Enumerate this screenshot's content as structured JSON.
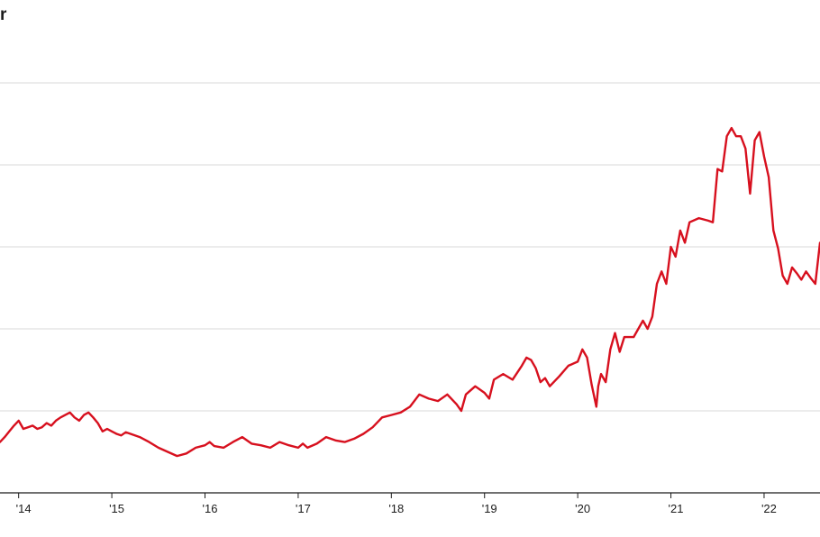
{
  "header": {
    "title_fragment": "r"
  },
  "colors": {
    "line": "#d7101e",
    "grid": "#d9d9d9",
    "axis": "#1a1a1a",
    "background": "#ffffff"
  },
  "chart_data": {
    "type": "line",
    "title": "",
    "xlabel": "",
    "ylabel": "",
    "x_tick_labels": [
      "'14",
      "'15",
      "'16",
      "'17",
      "'18",
      "'19",
      "'20",
      "'21",
      "'22"
    ],
    "x_ticks": [
      2014,
      2015,
      2016,
      2017,
      2018,
      2019,
      2020,
      2021,
      2022
    ],
    "xlim": [
      2013.8,
      2022.6
    ],
    "ylim": [
      0,
      5
    ],
    "y_gridlines": [
      1,
      2,
      3,
      4,
      5
    ],
    "grid": true,
    "legend": "none",
    "series": [
      {
        "x": [
          2013.8,
          2013.85,
          2013.9,
          2013.95,
          2014.0,
          2014.05,
          2014.1,
          2014.15,
          2014.2,
          2014.25,
          2014.3,
          2014.35,
          2014.4,
          2014.45,
          2014.5,
          2014.55,
          2014.6,
          2014.65,
          2014.7,
          2014.75,
          2014.8,
          2014.85,
          2014.9,
          2014.95,
          2015.0,
          2015.05,
          2015.1,
          2015.15,
          2015.2,
          2015.3,
          2015.4,
          2015.5,
          2015.6,
          2015.7,
          2015.8,
          2015.9,
          2016.0,
          2016.05,
          2016.1,
          2016.2,
          2016.3,
          2016.4,
          2016.5,
          2016.6,
          2016.7,
          2016.8,
          2016.9,
          2017.0,
          2017.05,
          2017.1,
          2017.2,
          2017.3,
          2017.4,
          2017.5,
          2017.6,
          2017.7,
          2017.8,
          2017.9,
          2018.0,
          2018.1,
          2018.2,
          2018.3,
          2018.4,
          2018.5,
          2018.6,
          2018.7,
          2018.75,
          2018.8,
          2018.9,
          2019.0,
          2019.05,
          2019.1,
          2019.2,
          2019.3,
          2019.4,
          2019.45,
          2019.5,
          2019.55,
          2019.6,
          2019.65,
          2019.7,
          2019.8,
          2019.9,
          2020.0,
          2020.05,
          2020.1,
          2020.15,
          2020.2,
          2020.22,
          2020.25,
          2020.3,
          2020.35,
          2020.4,
          2020.45,
          2020.5,
          2020.6,
          2020.7,
          2020.75,
          2020.8,
          2020.85,
          2020.9,
          2020.95,
          2021.0,
          2021.05,
          2021.1,
          2021.15,
          2021.2,
          2021.3,
          2021.4,
          2021.45,
          2021.5,
          2021.55,
          2021.6,
          2021.65,
          2021.7,
          2021.75,
          2021.8,
          2021.85,
          2021.9,
          2021.95,
          2022.0,
          2022.05,
          2022.1,
          2022.15,
          2022.2,
          2022.25,
          2022.3,
          2022.35,
          2022.4,
          2022.45,
          2022.5,
          2022.55,
          2022.6
        ],
        "values": [
          0.62,
          0.68,
          0.75,
          0.82,
          0.88,
          0.78,
          0.8,
          0.82,
          0.78,
          0.8,
          0.85,
          0.82,
          0.88,
          0.92,
          0.95,
          0.98,
          0.92,
          0.88,
          0.95,
          0.98,
          0.92,
          0.85,
          0.75,
          0.78,
          0.75,
          0.72,
          0.7,
          0.74,
          0.72,
          0.68,
          0.62,
          0.55,
          0.5,
          0.45,
          0.48,
          0.55,
          0.58,
          0.62,
          0.57,
          0.55,
          0.62,
          0.68,
          0.6,
          0.58,
          0.55,
          0.62,
          0.58,
          0.55,
          0.6,
          0.55,
          0.6,
          0.68,
          0.64,
          0.62,
          0.66,
          0.72,
          0.8,
          0.92,
          0.95,
          0.98,
          1.05,
          1.2,
          1.15,
          1.12,
          1.2,
          1.08,
          1.0,
          1.2,
          1.3,
          1.22,
          1.15,
          1.38,
          1.45,
          1.38,
          1.55,
          1.65,
          1.62,
          1.52,
          1.35,
          1.4,
          1.3,
          1.42,
          1.55,
          1.6,
          1.75,
          1.65,
          1.32,
          1.05,
          1.3,
          1.45,
          1.35,
          1.75,
          1.95,
          1.72,
          1.9,
          1.9,
          2.1,
          2.0,
          2.15,
          2.55,
          2.7,
          2.55,
          3.0,
          2.88,
          3.2,
          3.05,
          3.3,
          3.35,
          3.32,
          3.3,
          3.95,
          3.92,
          4.35,
          4.45,
          4.35,
          4.35,
          4.2,
          3.65,
          4.3,
          4.4,
          4.1,
          3.85,
          3.2,
          2.98,
          2.65,
          2.55,
          2.75,
          2.68,
          2.6,
          2.7,
          2.62,
          2.55,
          3.05
        ]
      }
    ]
  }
}
